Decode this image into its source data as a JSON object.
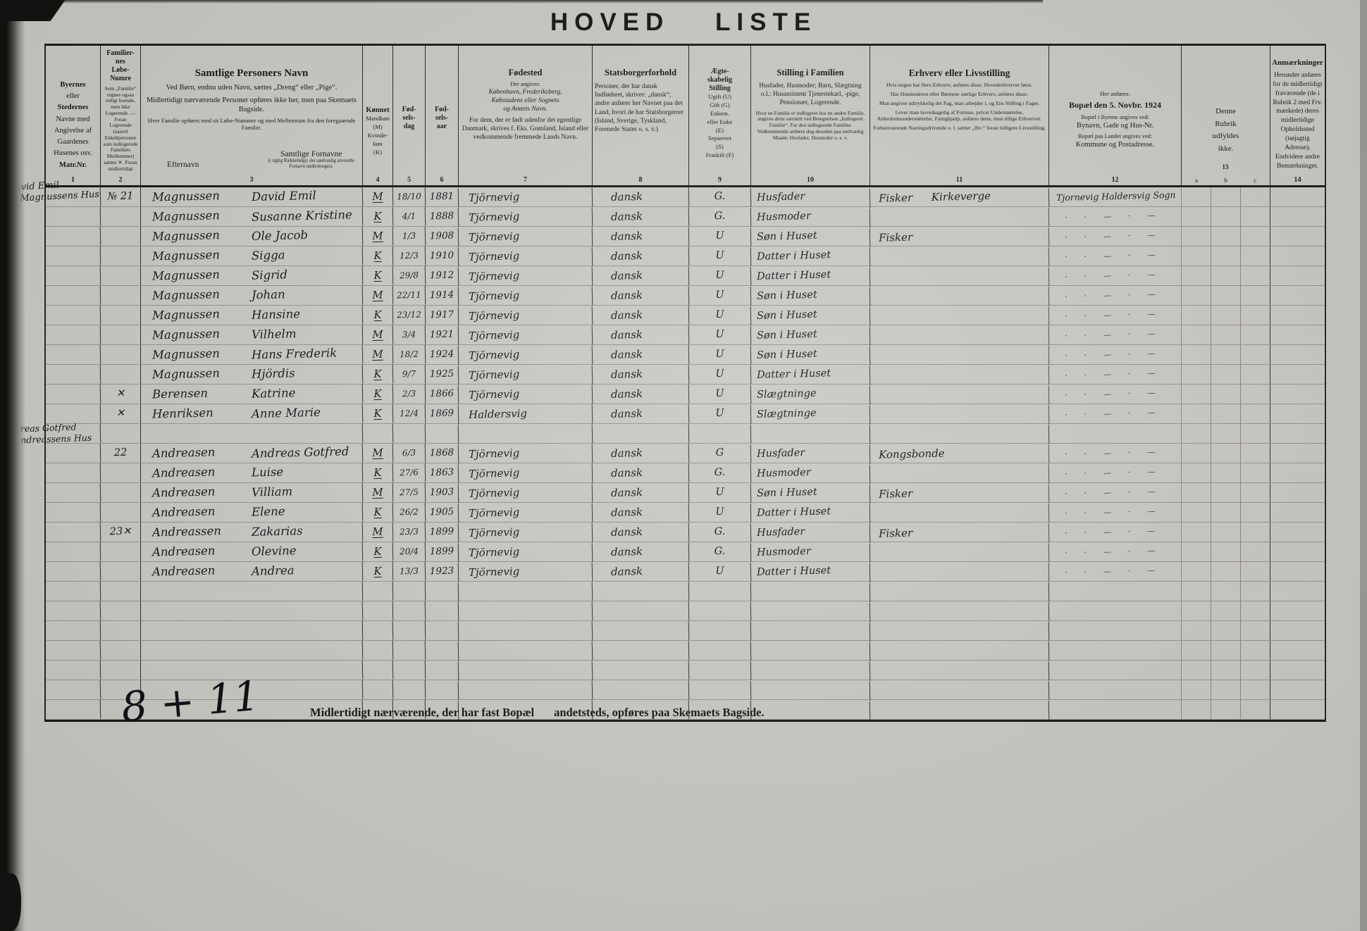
{
  "title": "HOVED LISTE",
  "columns": {
    "c1": {
      "num": "1",
      "lines": [
        [
          "Byernes",
          1
        ],
        [
          "eller",
          0
        ],
        [
          "Stedernes",
          1
        ],
        [
          "Navne med",
          0
        ],
        [
          "Angivelse af",
          0
        ],
        [
          "Gaardenes",
          0
        ],
        [
          "Husenes osv.",
          0
        ],
        [
          "Matr.Nr.",
          1
        ]
      ]
    },
    "c2": {
      "num": "2",
      "title_lines": [
        [
          "Familier-",
          1
        ],
        [
          "nes",
          1
        ],
        [
          "Løbe-",
          1
        ],
        [
          "Numre",
          1
        ]
      ],
      "note": "Som „Familie“ regnes ogsaa enligt boende, men ikke Logerende. — Foran Logerende (saavel Enkeltpersoner som indlogerede Familiers Medlemmer) sættes ✕. Foran midlertidigt fraværende sættes Frv. (jfr. Rubr. 14)"
    },
    "c3": {
      "num": "3",
      "title": "Samtlige Personers Navn",
      "sub1": "Ved Børn, endnu uden Navn, sættes „Dreng“ eller „Pige“.",
      "sub2": "Midlertidigt nærværende Personer opføres ikke her, men paa Skemaets Bagside.",
      "sub3": "Hver Familie opføres med sit Løbe-Nummer og med Mellemrum fra den foregaaende Familie.",
      "left_label": "Efternavn",
      "right_label": "Samtlige Fornavne",
      "right_note": "(i rigtig Rækkefølge; det sædvanlig anvendte Fornavn understreges)."
    },
    "c4": {
      "num": "4",
      "title": "Kønnet",
      "lines": [
        "Mandkøn",
        "(M)",
        "Kvinde-",
        "køn",
        "(K)"
      ]
    },
    "c5": {
      "num": "5",
      "lines": [
        [
          "Fød-",
          1
        ],
        [
          "sels-",
          1
        ],
        [
          "dag",
          1
        ]
      ]
    },
    "c6": {
      "num": "6",
      "lines": [
        [
          "Fød-",
          1
        ],
        [
          "sels-",
          1
        ],
        [
          "aar",
          1
        ]
      ]
    },
    "c7": {
      "num": "7",
      "title": "Fødested",
      "sub": "Der angives:",
      "italic1": "København, Frederiksberg,",
      "italic2": "Købstadens eller Sognets",
      "italic3": "og Amtets Navn.",
      "para": "For dem, der er født udenfor det egentlige Danmark, skrives f. Eks. Grønland, Island eller vedkommende fremmede Lands Navn."
    },
    "c8": {
      "num": "8",
      "title": "Statsborgerforhold",
      "para": "Personer, der har dansk Indfødsret, skriver: „dansk“; andre anfører her Navnet paa det Land, hvori de har Statsborgerret (Island, Sverige, Tyskland, Forenede Stater o. s. v.)"
    },
    "c9": {
      "num": "9",
      "title_lines": [
        [
          "Ægte-",
          1
        ],
        [
          "skabelig",
          1
        ],
        [
          "Stilling",
          1
        ]
      ],
      "lines": [
        "Ugift (U)",
        "Gift (G)",
        "Enkem.",
        "eller Enke",
        "(E)",
        "Separeret",
        "(S)",
        "Fraskilt (F)"
      ]
    },
    "c10": {
      "num": "10",
      "title": "Stilling i Familien",
      "para1": "Husfader, Husmoder; Barn, Slægtning o.l.; Husassistent Tjenestekarl, -pige, Pensionær, Logerende.",
      "para2": "Hvor en Familie er indlogeret hos en anden Familie, angives dette særskilt ved Betegnelsen „Indlogeret Familie“. For den indlogerede Families Vedkommende anføres dog desuden paa sædvanlig Maade: Husfader, Husmoder o. s. v."
    },
    "c11": {
      "num": "11",
      "title": "Erhverv eller Livsstilling",
      "paras": [
        "Hvis nogen har flere Erhverv, anføres disse, Hovederhvervet først.",
        "Har Husmoderen eller Børnene særlige Erhverv, anføres disse.",
        "Man angiver udtrykkelig det Fag, man arbejder i, og Ens Stilling i Faget.",
        "Lever man hovedsagelig af Formue, privat Understøttelse, Alderdomsunderstøttelse, Fattighjælp, anføres dette, men tillige Erhvervet.",
        "Forhenværende Næringsdrivende o. l. sætter „fhv.“ foran tidligere Livsstilling."
      ]
    },
    "c12": {
      "num": "12",
      "pre": "Her anføres:",
      "title": "Bopæl den 5. Novbr. 1924",
      "sub1": "Bopæl i Byerne angives ved:",
      "line1": "Bynavn, Gade og Hus-Nr.",
      "sub2": "Bopæl paa Landet angives ved:",
      "line2": "Kommune og Postadresse."
    },
    "c13": {
      "num": "13",
      "sub_nums": [
        "a",
        "b",
        "c"
      ],
      "lines": [
        "Denne",
        "Rubrik",
        "udfyldes",
        "ikke."
      ]
    },
    "c14": {
      "num": "14",
      "title": "Anmærkninger",
      "para": "Herunder anføres for de midlertidigt fraværende (de i Rubrik 2 med Frv. mærkede) deres midlertidige Opholdssted (nøjagtig Adresse). Endvidere andre Bemærkninger."
    }
  },
  "margin_notes": {
    "family1_line1": "David Emil",
    "family1_line2": "Magnussens Hus",
    "family2_line1": "Andreas Gotfred",
    "family2_line2": "Andreassens Hus"
  },
  "rows": [
    {
      "no": "№ 21",
      "sur": "Magnussen",
      "first": "David Emil",
      "sex": "M",
      "day": "18/10",
      "year": "1881",
      "born": "Tjörnevig",
      "cit": "dansk",
      "mar": "G.",
      "fam": "Husfader",
      "occ": "Fisker Kirkeverge",
      "res": "Tjornevig Haldersvig Sogn"
    },
    {
      "sur": "Magnussen",
      "first": "Susanne Kristine",
      "sex": "K",
      "day": "4/1",
      "year": "1888",
      "born": "Tjörnevig",
      "cit": "dansk",
      "mar": "G.",
      "fam": "Husmoder",
      "res": "ditto"
    },
    {
      "sur": "Magnussen",
      "first": "Ole Jacob",
      "sex": "M",
      "day": "1/3",
      "year": "1908",
      "born": "Tjörnevig",
      "cit": "dansk",
      "mar": "U",
      "fam": "Søn i Huset",
      "occ": "Fisker",
      "res": "ditto"
    },
    {
      "sur": "Magnussen",
      "first": "Sigga",
      "sex": "K",
      "day": "12/3",
      "year": "1910",
      "born": "Tjörnevig",
      "cit": "dansk",
      "mar": "U",
      "fam": "Datter i Huset",
      "res": "ditto"
    },
    {
      "sur": "Magnussen",
      "first": "Sigrid",
      "sex": "K",
      "day": "29/8",
      "year": "1912",
      "born": "Tjörnevig",
      "cit": "dansk",
      "mar": "U",
      "fam": "Datter i Huset",
      "res": "ditto"
    },
    {
      "sur": "Magnussen",
      "first": "Johan",
      "sex": "M",
      "day": "22/11",
      "year": "1914",
      "born": "Tjörnevig",
      "cit": "dansk",
      "mar": "U",
      "fam": "Søn i Huset",
      "res": "ditto"
    },
    {
      "sur": "Magnussen",
      "first": "Hansine",
      "sex": "K",
      "day": "23/12",
      "year": "1917",
      "born": "Tjörnevig",
      "cit": "dansk",
      "mar": "U",
      "fam": "Søn i Huset",
      "res": "ditto"
    },
    {
      "sur": "Magnussen",
      "first": "Vilhelm",
      "sex": "M",
      "day": "3/4",
      "year": "1921",
      "born": "Tjörnevig",
      "cit": "dansk",
      "mar": "U",
      "fam": "Søn i Huset",
      "res": "ditto"
    },
    {
      "sur": "Magnussen",
      "first": "Hans Frederik",
      "sex": "M",
      "day": "18/2",
      "year": "1924",
      "born": "Tjörnevig",
      "cit": "dansk",
      "mar": "U",
      "fam": "Søn i Huset",
      "res": "ditto"
    },
    {
      "sur": "Magnussen",
      "first": "Hjördis",
      "sex": "K",
      "day": "9/7",
      "year": "1925",
      "born": "Tjörnevig",
      "cit": "dansk",
      "mar": "U",
      "fam": "Datter i Huset",
      "res": "ditto"
    },
    {
      "no": "✕",
      "sur": "Berensen",
      "first": "Katrine",
      "sex": "K",
      "day": "2/3",
      "year": "1866",
      "born": "Tjörnevig",
      "cit": "dansk",
      "mar": "U",
      "fam": "Slægtninge",
      "res": "ditto"
    },
    {
      "no": "✕",
      "sur": "Henriksen",
      "first": "Anne Marie",
      "sex": "K",
      "day": "12/4",
      "year": "1869",
      "born": "Haldersvig",
      "cit": "dansk",
      "mar": "U",
      "fam": "Slægtninge",
      "res": "ditto"
    },
    {},
    {
      "no": "22",
      "sur": "Andreasen",
      "first": "Andreas Gotfred",
      "sex": "M",
      "day": "6/3",
      "year": "1868",
      "born": "Tjörnevig",
      "cit": "dansk",
      "mar": "G",
      "fam": "Husfader",
      "occ": "Kongsbonde",
      "res": "ditto"
    },
    {
      "sur": "Andreasen",
      "first": "Luise",
      "sex": "K",
      "day": "27/6",
      "year": "1863",
      "born": "Tjörnevig",
      "cit": "dansk",
      "mar": "G.",
      "fam": "Husmoder",
      "res": "ditto"
    },
    {
      "sur": "Andreasen",
      "first": "Villiam",
      "sex": "M",
      "day": "27/5",
      "year": "1903",
      "born": "Tjörnevig",
      "cit": "dansk",
      "mar": "U",
      "fam": "Søn i Huset",
      "occ": "Fisker",
      "res": "ditto"
    },
    {
      "sur": "Andreasen",
      "first": "Elene",
      "sex": "K",
      "day": "26/2",
      "year": "1905",
      "born": "Tjörnevig",
      "cit": "dansk",
      "mar": "U",
      "fam": "Datter i Huset",
      "res": "ditto"
    },
    {
      "no": "23✕",
      "sur": "Andreassen",
      "first": "Zakarias",
      "sex": "M",
      "day": "23/3",
      "year": "1899",
      "born": "Tjörnevig",
      "cit": "dansk",
      "mar": "G.",
      "fam": "Husfader",
      "occ": "Fisker",
      "res": "ditto"
    },
    {
      "sur": "Andreasen",
      "first": "Olevine",
      "sex": "K",
      "day": "20/4",
      "year": "1899",
      "born": "Tjörnevig",
      "cit": "dansk",
      "mar": "G.",
      "fam": "Husmoder",
      "res": "ditto"
    },
    {
      "sur": "Andreasen",
      "first": "Andrea",
      "sex": "K",
      "day": "13/3",
      "year": "1923",
      "born": "Tjörnevig",
      "cit": "dansk",
      "mar": "U",
      "fam": "Datter i Huset",
      "res": "ditto"
    },
    {},
    {},
    {},
    {},
    {},
    {},
    {}
  ],
  "misc": {
    "ditto": "· · — · —",
    "footer_left": "Midlertidigt nærværende, der har fast Bopæl",
    "footer_right": "andetsteds, opføres paa Skemaets Bagside.",
    "bottom_note": "8 + 11"
  }
}
